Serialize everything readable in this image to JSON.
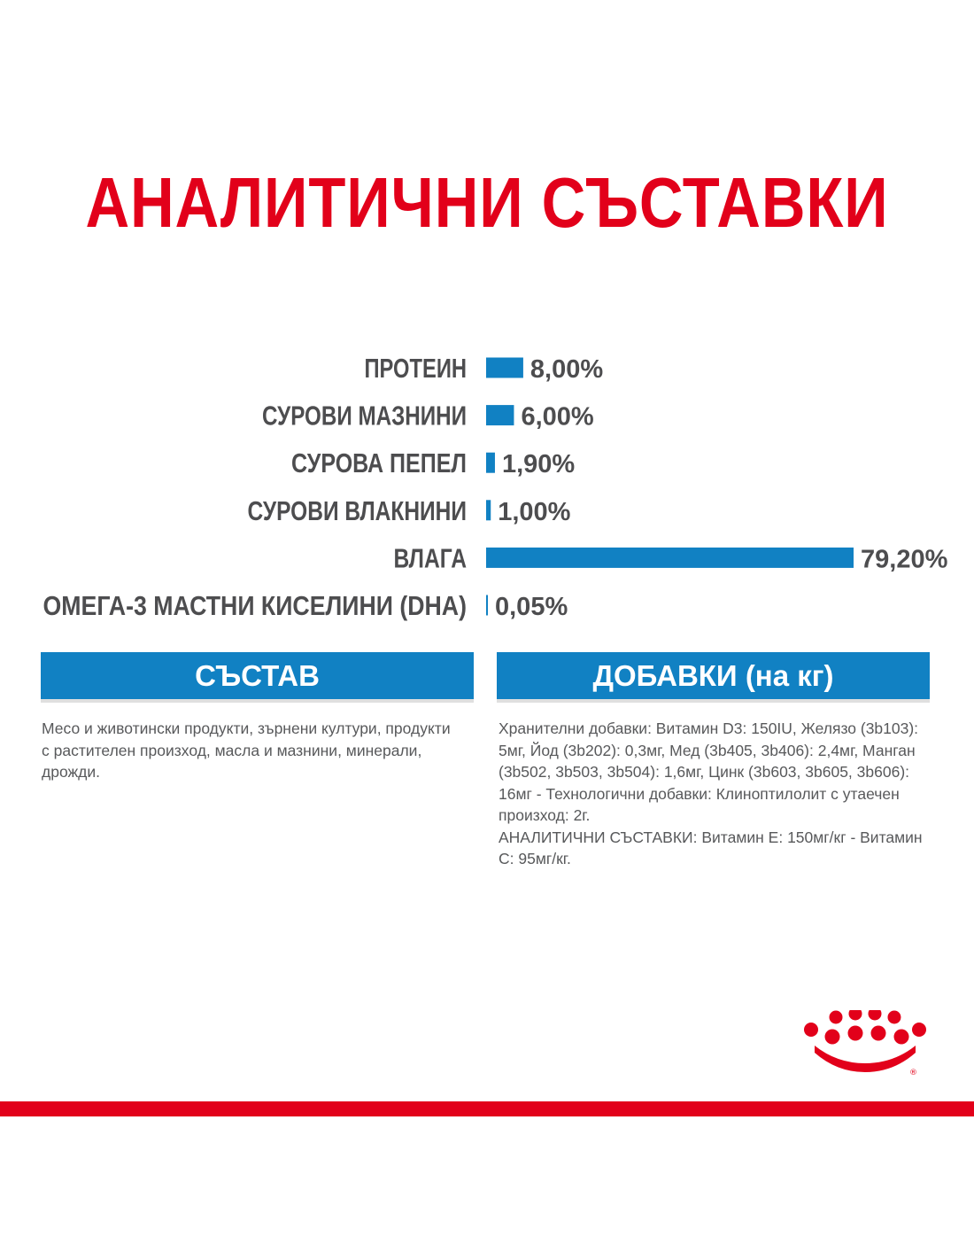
{
  "colors": {
    "brand_red": "#e2001a",
    "bar_blue": "#1181c3",
    "text_gray": "#4d4d4f"
  },
  "title": "АНАЛИТИЧНИ СЪСТАВКИ",
  "chart_data": {
    "type": "bar",
    "orientation": "horizontal",
    "categories": [
      "ПРОТЕИН",
      "СУРОВИ МАЗНИНИ",
      "СУРОВА ПЕПЕЛ",
      "СУРОВИ ВЛАКНИНИ",
      "ВЛАГА",
      "ОМЕГА-3 МАСТНИ КИСЕЛИНИ (DHA)"
    ],
    "values": [
      8.0,
      6.0,
      1.9,
      1.0,
      79.2,
      0.05
    ],
    "value_labels": [
      "8,00%",
      "6,00%",
      "1,90%",
      "1,00%",
      "79,20%",
      "0,05%"
    ],
    "unit": "%",
    "grid": false,
    "legend": "none"
  },
  "sections": [
    {
      "heading": "СЪСТАВ",
      "lines": [
        "Месо и животински продукти, зърнени култури, продукти",
        "с растителен произход, масла и мазнини, минерали,",
        "дрожди."
      ]
    },
    {
      "heading": "ДОБАВКИ (на кг)",
      "lines": [
        "Хранителни добавки: Витамин D3: 150IU, Желязо (3b103):",
        "5мг, Йод (3b202): 0,3мг, Мед (3b405, 3b406): 2,4мг, Манган",
        "(3b502, 3b503, 3b504): 1,6мг, Цинк (3b603, 3b605, 3b606):",
        "16мг - Технологични добавки: Клиноптилолит с утаечен",
        "произход: 2г.",
        "АНАЛИТИЧНИ СЪСТАВКИ: Витамин Е: 150мг/кг - Витамин",
        "С: 95мг/кг."
      ]
    }
  ],
  "logo": {
    "icon": "crown-icon",
    "mark": "®"
  }
}
